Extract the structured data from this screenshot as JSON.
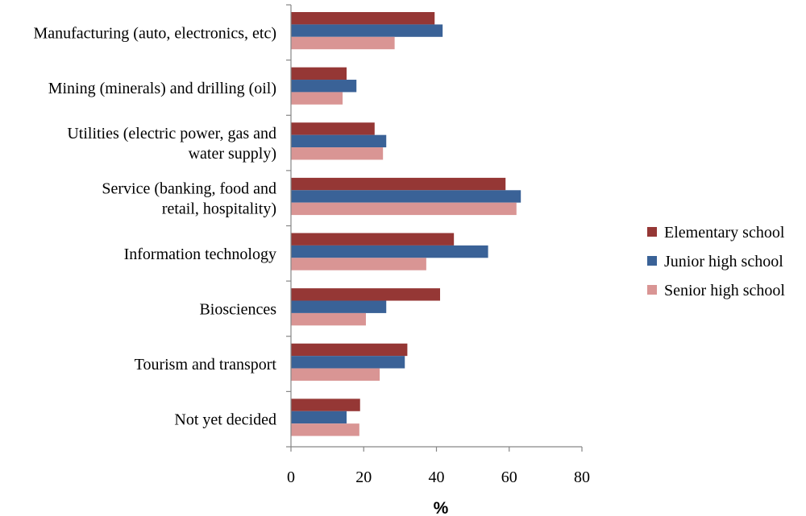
{
  "chart_data": {
    "type": "bar",
    "orientation": "horizontal",
    "title": "",
    "xlabel": "%",
    "ylabel": "",
    "xlim": [
      0,
      80
    ],
    "xticks": [
      0,
      20,
      40,
      60,
      80
    ],
    "grid": false,
    "legend_position": "right",
    "categories": [
      [
        "Manufacturing (auto, electronics, etc)"
      ],
      [
        "Mining (minerals) and drilling (oil)"
      ],
      [
        "Utilities (electric power, gas and",
        "water supply)"
      ],
      [
        "Service (banking, food and",
        "retail, hospitality)"
      ],
      [
        "Information technology"
      ],
      [
        "Biosciences"
      ],
      [
        "Tourism and transport"
      ],
      [
        "Not yet decided"
      ]
    ],
    "series": [
      {
        "name": "Elementary school",
        "color": "#953735",
        "values": [
          39.5,
          15.3,
          23.0,
          59.0,
          44.8,
          41.0,
          32.0,
          19.0
        ]
      },
      {
        "name": "Junior high school",
        "color": "#3a6297",
        "values": [
          41.7,
          18.0,
          26.2,
          63.2,
          54.2,
          26.2,
          31.3,
          15.3
        ]
      },
      {
        "name": "Senior high school",
        "color": "#d99594",
        "values": [
          28.5,
          14.2,
          25.3,
          62.0,
          37.2,
          20.6,
          24.4,
          18.8
        ]
      }
    ]
  }
}
